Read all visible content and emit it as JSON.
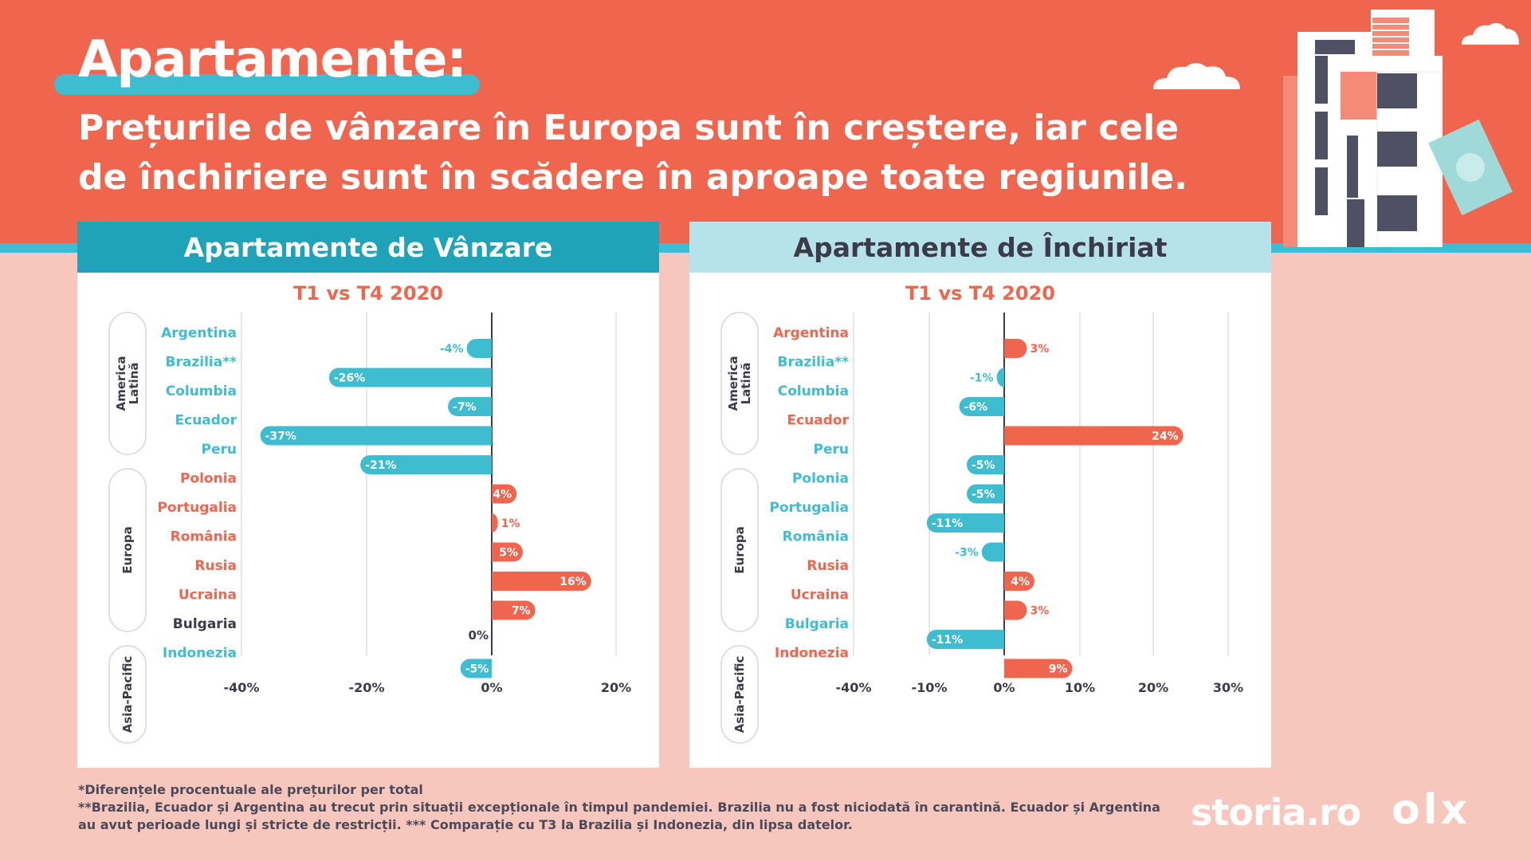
{
  "header": {
    "title": "Apartamente:",
    "subtitle": "Prețurile de vânzare în Europa sunt în creștere, iar cele de închiriere sunt în scădere în aproape toate regiunile."
  },
  "colors": {
    "teal": "#3fbdd0",
    "coral": "#f0654e",
    "dark": "#3b3b4a"
  },
  "groups": [
    {
      "label": "America Latină"
    },
    {
      "label": "Europa"
    },
    {
      "label": "Asia-Pacific"
    }
  ],
  "chart_data": [
    {
      "type": "bar",
      "orientation": "horizontal",
      "panel_title": "Apartamente de Vânzare",
      "subtitle": "T1 vs T4 2020",
      "categories": [
        "Argentina",
        "Brazilia**",
        "Columbia",
        "Ecuador",
        "Peru",
        "Polonia",
        "Portugalia",
        "România",
        "Rusia",
        "Ucraina",
        "Bulgaria",
        "Indonezia"
      ],
      "values": [
        -4,
        -26,
        -7,
        -37,
        -21,
        4,
        1,
        5,
        16,
        7,
        0,
        -5
      ],
      "value_labels": [
        "-4%",
        "-26%",
        "-7%",
        "-37%",
        "-21%",
        "4%",
        "1%",
        "5%",
        "16%",
        "7%",
        "0%",
        "-5%"
      ],
      "xlim": [
        -40,
        20
      ],
      "ticks": [
        -40,
        -20,
        0,
        20
      ],
      "tick_labels": [
        "-40%",
        "-20%",
        "0%",
        "20%"
      ],
      "grid": true
    },
    {
      "type": "bar",
      "orientation": "horizontal",
      "panel_title": "Apartamente de Închiriat",
      "subtitle": "T1 vs T4 2020",
      "categories": [
        "Argentina",
        "Brazilia**",
        "Columbia",
        "Ecuador",
        "Peru",
        "Polonia",
        "Portugalia",
        "România",
        "Rusia",
        "Ucraina",
        "Bulgaria",
        "Indonezia"
      ],
      "values": [
        3,
        -1,
        -6,
        24,
        -5,
        -5,
        -11,
        -3,
        4,
        3,
        -11,
        9
      ],
      "value_labels": [
        "3%",
        "-1%",
        "-6%",
        "24%",
        "-5%",
        "-5%",
        "-11%",
        "-3%",
        "4%",
        "3%",
        "-11%",
        "9%"
      ],
      "xlim": [
        -40,
        30
      ],
      "ticks": [
        -40,
        -10,
        0,
        10,
        20,
        30
      ],
      "tick_labels": [
        "-40%",
        "-10%",
        "0%",
        "10%",
        "20%",
        "30%"
      ],
      "grid": true
    }
  ],
  "footnotes": {
    "line1": "*Diferențele procentuale ale prețurilor per total",
    "line2": "**Brazilia, Ecuador și Argentina au trecut prin situații excepționale în timpul pandemiei. Brazilia nu a fost niciodată în carantină. Ecuador și Argentina au avut perioade lungi și stricte de restricții.  *** Comparație cu T3 la Brazilia și Indonezia, din lipsa datelor."
  },
  "logos": {
    "storia": "storia.ro",
    "olx": "olx"
  }
}
